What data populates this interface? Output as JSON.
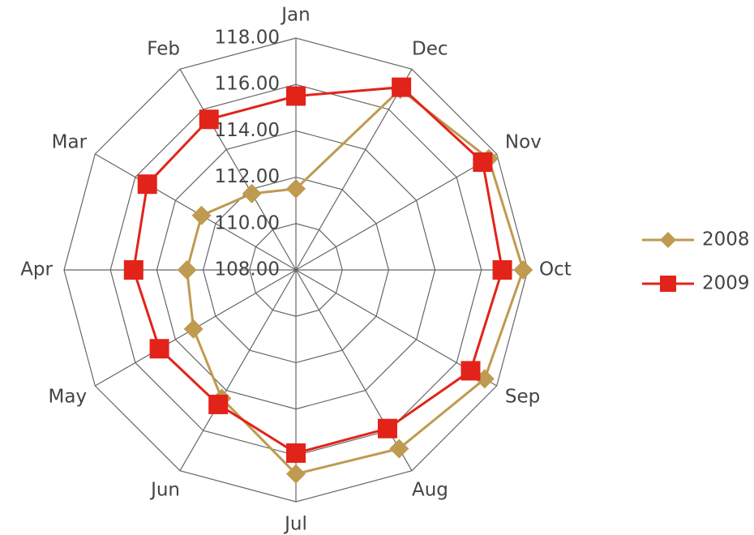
{
  "chart_data": {
    "type": "radar",
    "categories": [
      "Jan",
      "Feb",
      "Mar",
      "Apr",
      "May",
      "Jun",
      "Jul",
      "Aug",
      "Sep",
      "Oct",
      "Nov",
      "Dec"
    ],
    "series": [
      {
        "name": "2008",
        "color": "#bf9a50",
        "marker": "diamond",
        "values": [
          111.5,
          111.8,
          112.7,
          112.7,
          113.1,
          114.4,
          116.8,
          116.9,
          117.4,
          117.8,
          117.6,
          117.0
        ]
      },
      {
        "name": "2009",
        "color": "#e2231a",
        "marker": "square",
        "values": [
          115.5,
          115.5,
          115.4,
          115.0,
          114.8,
          114.7,
          115.9,
          115.9,
          116.7,
          116.9,
          117.3,
          117.1
        ]
      }
    ],
    "ylim": [
      108,
      118
    ],
    "yticks": [
      {
        "value": 108,
        "label": "108.00"
      },
      {
        "value": 110,
        "label": "110.00"
      },
      {
        "value": 112,
        "label": "112.00"
      },
      {
        "value": 114,
        "label": "114.00"
      },
      {
        "value": 116,
        "label": "116.00"
      },
      {
        "value": 118,
        "label": "118.00"
      }
    ],
    "grid": true,
    "legend": "right"
  }
}
